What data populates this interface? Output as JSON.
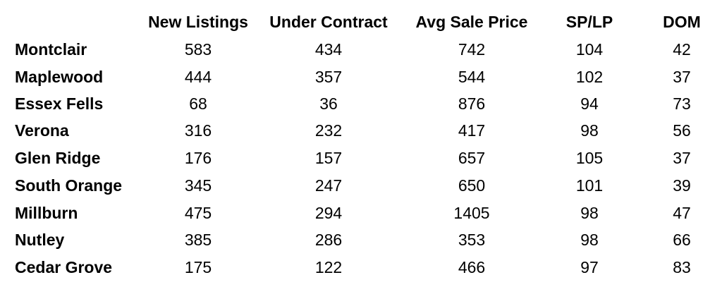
{
  "chart_data": {
    "type": "table",
    "columns": [
      "New Listings",
      "Under Contract",
      "Avg Sale Price",
      "SP/LP",
      "DOM"
    ],
    "rows": [
      {
        "label": "Montclair",
        "values": [
          "583",
          "434",
          "742",
          "104",
          "42"
        ]
      },
      {
        "label": "Maplewood",
        "values": [
          "444",
          "357",
          "544",
          "102",
          "37"
        ]
      },
      {
        "label": "Essex Fells",
        "values": [
          "68",
          "36",
          "876",
          "94",
          "73"
        ]
      },
      {
        "label": "Verona",
        "values": [
          "316",
          "232",
          "417",
          "98",
          "56"
        ]
      },
      {
        "label": "Glen Ridge",
        "values": [
          "176",
          "157",
          "657",
          "105",
          "37"
        ]
      },
      {
        "label": "South Orange",
        "values": [
          "345",
          "247",
          "650",
          "101",
          "39"
        ]
      },
      {
        "label": "Millburn",
        "values": [
          "475",
          "294",
          "1405",
          "98",
          "47"
        ]
      },
      {
        "label": "Nutley",
        "values": [
          "385",
          "286",
          "353",
          "98",
          "66"
        ]
      },
      {
        "label": "Cedar Grove",
        "values": [
          "175",
          "122",
          "466",
          "97",
          "83"
        ]
      }
    ]
  }
}
